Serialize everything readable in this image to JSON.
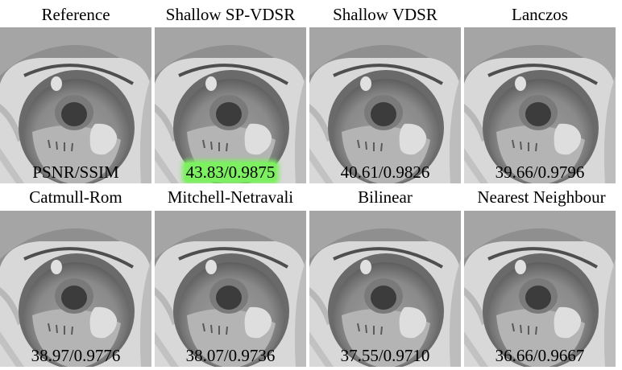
{
  "highlight_color": "#7cf060",
  "panels": [
    {
      "title": "Reference",
      "metric": "PSNR/SSIM",
      "highlight": false
    },
    {
      "title": "Shallow SP-VDSR",
      "metric": "43.83/0.9875",
      "highlight": true
    },
    {
      "title": "Shallow VDSR",
      "metric": "40.61/0.9826",
      "highlight": false
    },
    {
      "title": "Lanczos",
      "metric": "39.66/0.9796",
      "highlight": false
    },
    {
      "title": "Catmull-Rom",
      "metric": "38.97/0.9776",
      "highlight": false
    },
    {
      "title": "Mitchell-Netravali",
      "metric": "38.07/0.9736",
      "highlight": false
    },
    {
      "title": "Bilinear",
      "metric": "37.55/0.9710",
      "highlight": false
    },
    {
      "title": "Nearest Neighbour",
      "metric": "36.66/0.9667",
      "highlight": false
    }
  ]
}
